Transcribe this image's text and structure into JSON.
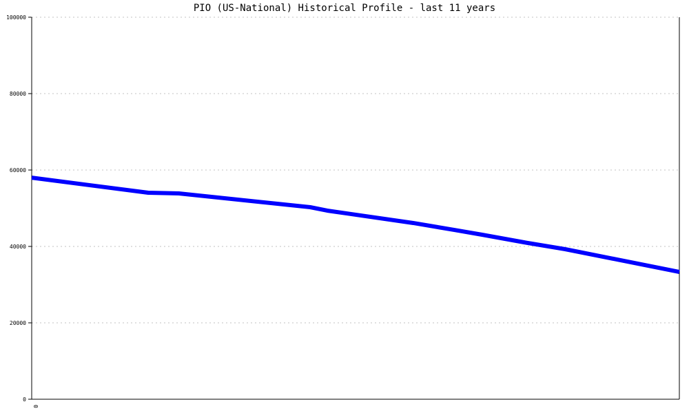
{
  "chart_data": {
    "type": "line",
    "title": "PIO (US-National) Historical Profile - last 11 years",
    "xlabel": "",
    "ylabel": "",
    "ylim": [
      0,
      100000
    ],
    "xlim": [
      0,
      11
    ],
    "y_ticks": [
      "0",
      "20000",
      "40000",
      "60000",
      "80000",
      "100000"
    ],
    "x_ticks": [
      "0"
    ],
    "grid": "horizontal dotted",
    "legend": "none",
    "series": [
      {
        "color": "#0000ff",
        "x": [
          0,
          1.98,
          2.5,
          4.73,
          5.02,
          6.48,
          7.18,
          7.65,
          8.36,
          9.06,
          11
        ],
        "y": [
          58000,
          54050,
          53870,
          50270,
          49370,
          46130,
          44320,
          43060,
          41080,
          39280,
          33330
        ]
      }
    ]
  }
}
